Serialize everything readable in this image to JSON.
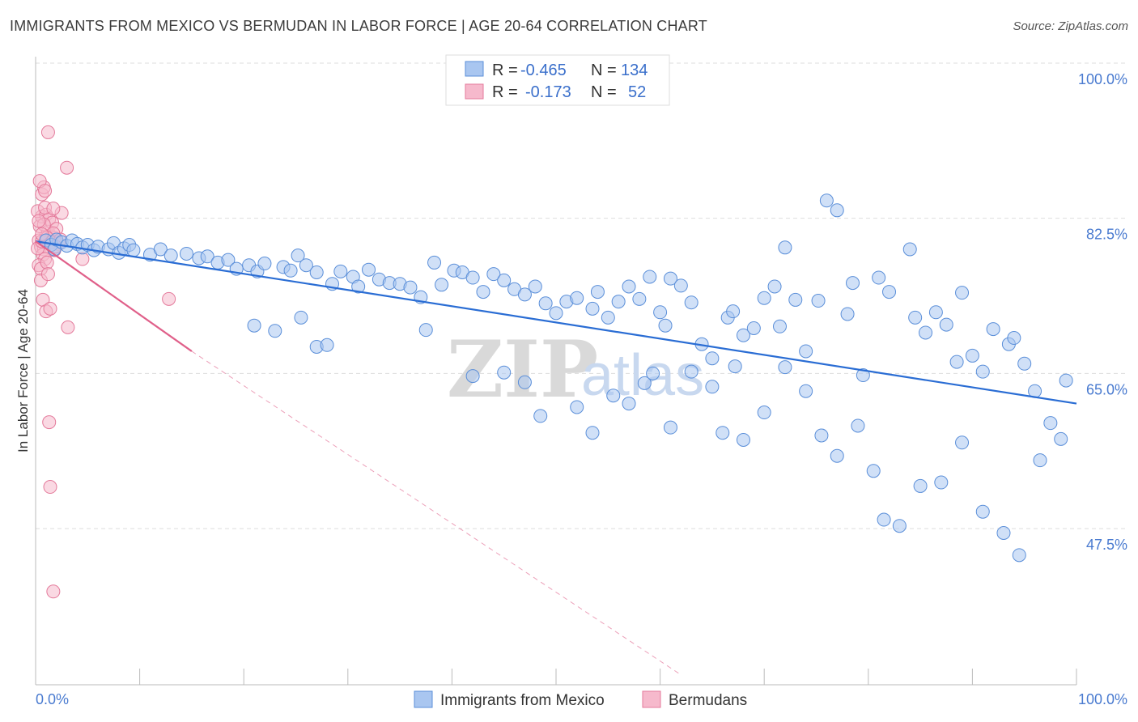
{
  "title": "IMMIGRANTS FROM MEXICO VS BERMUDAN IN LABOR FORCE | AGE 20-64 CORRELATION CHART",
  "source": "Source: ZipAtlas.com",
  "watermark": {
    "zip": "ZIP",
    "atlas": "atlas"
  },
  "legend_top": {
    "rows": [
      {
        "r_label": "R =",
        "r_value": "-0.465",
        "n_label": "N =",
        "n_value": "134"
      },
      {
        "r_label": "R =",
        "r_value": "-0.173",
        "n_label": "N =",
        "n_value": "52"
      }
    ]
  },
  "legend_bottom": [
    {
      "label": "Immigrants from Mexico"
    },
    {
      "label": "Bermudans"
    }
  ],
  "colors": {
    "blue_fill": "#a9c6f0",
    "blue_stroke": "#5b8fd9",
    "blue_line": "#2a6dd4",
    "pink_fill": "#f6b9cc",
    "pink_stroke": "#e47a9b",
    "pink_line": "#e0608a",
    "grid": "#dddddd",
    "tick_text": "#4a7bd0"
  },
  "chart_data": {
    "type": "scatter",
    "title": "IMMIGRANTS FROM MEXICO VS BERMUDAN IN LABOR FORCE | AGE 20-64 CORRELATION CHART",
    "xlabel": "",
    "ylabel": "In Labor Force | Age 20-64",
    "xlim": [
      0,
      100
    ],
    "ylim": [
      31,
      102
    ],
    "x_tick_labels": [
      "0.0%",
      "100.0%"
    ],
    "y_ticks": [
      47.5,
      65.0,
      82.5,
      100.0
    ],
    "y_tick_labels": [
      "47.5%",
      "65.0%",
      "82.5%",
      "100.0%"
    ],
    "grid": true,
    "legend_position": "top-center",
    "series": [
      {
        "name": "Immigrants from Mexico",
        "R": -0.465,
        "N": 134,
        "trend": {
          "x": [
            0,
            100
          ],
          "y": [
            79.9,
            61.6
          ]
        },
        "points": [
          [
            1.0,
            80.0
          ],
          [
            1.5,
            79.5
          ],
          [
            1.8,
            79.0
          ],
          [
            2.0,
            80.1
          ],
          [
            2.5,
            79.8
          ],
          [
            3.0,
            79.4
          ],
          [
            3.5,
            80.0
          ],
          [
            4.0,
            79.6
          ],
          [
            4.5,
            79.2
          ],
          [
            5.0,
            79.5
          ],
          [
            5.6,
            78.9
          ],
          [
            6.0,
            79.3
          ],
          [
            7.0,
            79.0
          ],
          [
            7.5,
            79.7
          ],
          [
            8.0,
            78.6
          ],
          [
            8.5,
            79.1
          ],
          [
            9.0,
            79.5
          ],
          [
            9.4,
            78.9
          ],
          [
            11.0,
            78.4
          ],
          [
            12.0,
            79.0
          ],
          [
            13.0,
            78.3
          ],
          [
            14.5,
            78.5
          ],
          [
            15.7,
            78.0
          ],
          [
            16.5,
            78.2
          ],
          [
            17.5,
            77.5
          ],
          [
            18.5,
            77.8
          ],
          [
            19.3,
            76.8
          ],
          [
            20.5,
            77.2
          ],
          [
            21.3,
            76.5
          ],
          [
            22.0,
            77.4
          ],
          [
            23.8,
            77.0
          ],
          [
            24.5,
            76.6
          ],
          [
            25.2,
            78.3
          ],
          [
            26.0,
            77.2
          ],
          [
            27.0,
            76.4
          ],
          [
            28.5,
            75.1
          ],
          [
            29.3,
            76.5
          ],
          [
            30.5,
            75.9
          ],
          [
            31.0,
            74.8
          ],
          [
            32.0,
            76.7
          ],
          [
            33.0,
            75.6
          ],
          [
            34.0,
            75.2
          ],
          [
            35.0,
            75.1
          ],
          [
            36.0,
            74.7
          ],
          [
            37.0,
            73.6
          ],
          [
            37.5,
            69.9
          ],
          [
            38.3,
            77.5
          ],
          [
            39.0,
            75.0
          ],
          [
            40.2,
            76.6
          ],
          [
            41.0,
            76.4
          ],
          [
            42.0,
            75.8
          ],
          [
            43.0,
            74.2
          ],
          [
            44.0,
            76.2
          ],
          [
            45.0,
            75.5
          ],
          [
            46.0,
            74.5
          ],
          [
            47.0,
            73.9
          ],
          [
            48.0,
            74.8
          ],
          [
            49.0,
            72.9
          ],
          [
            50.0,
            71.8
          ],
          [
            51.0,
            73.1
          ],
          [
            52.0,
            73.5
          ],
          [
            53.5,
            72.3
          ],
          [
            54.0,
            74.2
          ],
          [
            55.0,
            71.3
          ],
          [
            56.0,
            73.1
          ],
          [
            57.0,
            74.8
          ],
          [
            58.0,
            73.4
          ],
          [
            59.0,
            75.9
          ],
          [
            60.0,
            71.9
          ],
          [
            60.5,
            70.4
          ],
          [
            61.0,
            75.7
          ],
          [
            62.0,
            74.9
          ],
          [
            63.0,
            73.0
          ],
          [
            64.0,
            68.3
          ],
          [
            65.0,
            66.7
          ],
          [
            66.5,
            71.3
          ],
          [
            67.0,
            72.0
          ],
          [
            67.2,
            65.8
          ],
          [
            68.0,
            69.3
          ],
          [
            69.0,
            70.1
          ],
          [
            70.0,
            73.5
          ],
          [
            71.0,
            74.8
          ],
          [
            71.5,
            70.3
          ],
          [
            72.0,
            79.2
          ],
          [
            73.0,
            73.3
          ],
          [
            74.0,
            67.5
          ],
          [
            75.2,
            73.2
          ],
          [
            76.0,
            84.5
          ],
          [
            77.0,
            83.4
          ],
          [
            78.0,
            71.7
          ],
          [
            78.5,
            75.2
          ],
          [
            79.5,
            64.8
          ],
          [
            81.0,
            75.8
          ],
          [
            82.0,
            74.2
          ],
          [
            84.0,
            79.0
          ],
          [
            84.5,
            71.3
          ],
          [
            85.5,
            69.6
          ],
          [
            86.5,
            71.9
          ],
          [
            87.5,
            70.5
          ],
          [
            88.5,
            66.3
          ],
          [
            89.0,
            74.1
          ],
          [
            90.0,
            67.0
          ],
          [
            91.0,
            65.2
          ],
          [
            92.0,
            70.0
          ],
          [
            93.5,
            68.3
          ],
          [
            94.0,
            69.0
          ],
          [
            95.0,
            66.1
          ],
          [
            96.0,
            63.0
          ],
          [
            97.5,
            59.4
          ],
          [
            98.5,
            57.6
          ],
          [
            99.0,
            64.2
          ],
          [
            21.0,
            70.4
          ],
          [
            23.0,
            69.8
          ],
          [
            25.5,
            71.3
          ],
          [
            27.0,
            68.0
          ],
          [
            28.0,
            68.2
          ],
          [
            42.0,
            64.7
          ],
          [
            45.0,
            65.1
          ],
          [
            47.0,
            64.0
          ],
          [
            48.5,
            60.2
          ],
          [
            52.0,
            61.2
          ],
          [
            53.5,
            58.3
          ],
          [
            55.5,
            62.5
          ],
          [
            57.0,
            61.6
          ],
          [
            58.5,
            63.9
          ],
          [
            59.3,
            65.0
          ],
          [
            61.0,
            58.9
          ],
          [
            63.0,
            65.2
          ],
          [
            65.0,
            63.5
          ],
          [
            66.0,
            58.3
          ],
          [
            68.0,
            57.5
          ],
          [
            70.0,
            60.6
          ],
          [
            72.0,
            65.7
          ],
          [
            74.0,
            63.0
          ],
          [
            75.5,
            58.0
          ],
          [
            77.0,
            55.7
          ],
          [
            79.0,
            59.1
          ],
          [
            80.5,
            54.0
          ],
          [
            81.5,
            48.5
          ],
          [
            83.0,
            47.8
          ],
          [
            85.0,
            52.3
          ],
          [
            87.0,
            52.7
          ],
          [
            89.0,
            57.2
          ],
          [
            91.0,
            49.4
          ],
          [
            93.0,
            47.0
          ],
          [
            94.5,
            44.5
          ],
          [
            96.5,
            55.2
          ]
        ]
      },
      {
        "name": "Bermudans",
        "R": -0.173,
        "N": 52,
        "trend": {
          "x": [
            0,
            15
          ],
          "y": [
            79.9,
            67.5
          ]
        },
        "trend_extended": {
          "x": [
            15,
            62
          ],
          "y": [
            67.5,
            31.0
          ]
        },
        "points": [
          [
            0.3,
            80.0
          ],
          [
            0.5,
            79.3
          ],
          [
            0.8,
            79.0
          ],
          [
            1.0,
            80.5
          ],
          [
            0.4,
            81.6
          ],
          [
            0.6,
            82.7
          ],
          [
            0.2,
            83.3
          ],
          [
            1.2,
            81.0
          ],
          [
            1.5,
            80.4
          ],
          [
            0.7,
            78.4
          ],
          [
            0.9,
            77.9
          ],
          [
            0.3,
            77.2
          ],
          [
            0.5,
            76.8
          ],
          [
            1.1,
            77.5
          ],
          [
            1.4,
            80.1
          ],
          [
            1.8,
            80.3
          ],
          [
            0.6,
            85.2
          ],
          [
            0.8,
            86.0
          ],
          [
            0.4,
            86.7
          ],
          [
            0.9,
            85.6
          ],
          [
            1.0,
            82.9
          ],
          [
            1.3,
            82.4
          ],
          [
            1.6,
            82.0
          ],
          [
            2.0,
            81.3
          ],
          [
            2.5,
            83.1
          ],
          [
            1.7,
            80.8
          ],
          [
            2.2,
            79.6
          ],
          [
            0.2,
            79.1
          ],
          [
            0.6,
            79.9
          ],
          [
            0.8,
            81.8
          ],
          [
            1.1,
            80.3
          ],
          [
            1.5,
            79.8
          ],
          [
            1.8,
            78.9
          ],
          [
            2.4,
            80.1
          ],
          [
            0.5,
            75.5
          ],
          [
            1.2,
            76.2
          ],
          [
            0.7,
            73.3
          ],
          [
            1.0,
            72.0
          ],
          [
            1.4,
            72.3
          ],
          [
            3.0,
            88.2
          ],
          [
            1.2,
            92.2
          ],
          [
            3.1,
            70.2
          ],
          [
            4.5,
            77.9
          ],
          [
            12.8,
            73.4
          ],
          [
            1.3,
            59.5
          ],
          [
            1.4,
            52.2
          ],
          [
            1.7,
            40.4
          ],
          [
            0.3,
            82.2
          ],
          [
            0.9,
            83.7
          ],
          [
            1.7,
            83.6
          ],
          [
            1.9,
            79.3
          ],
          [
            0.6,
            80.7
          ]
        ]
      }
    ]
  }
}
